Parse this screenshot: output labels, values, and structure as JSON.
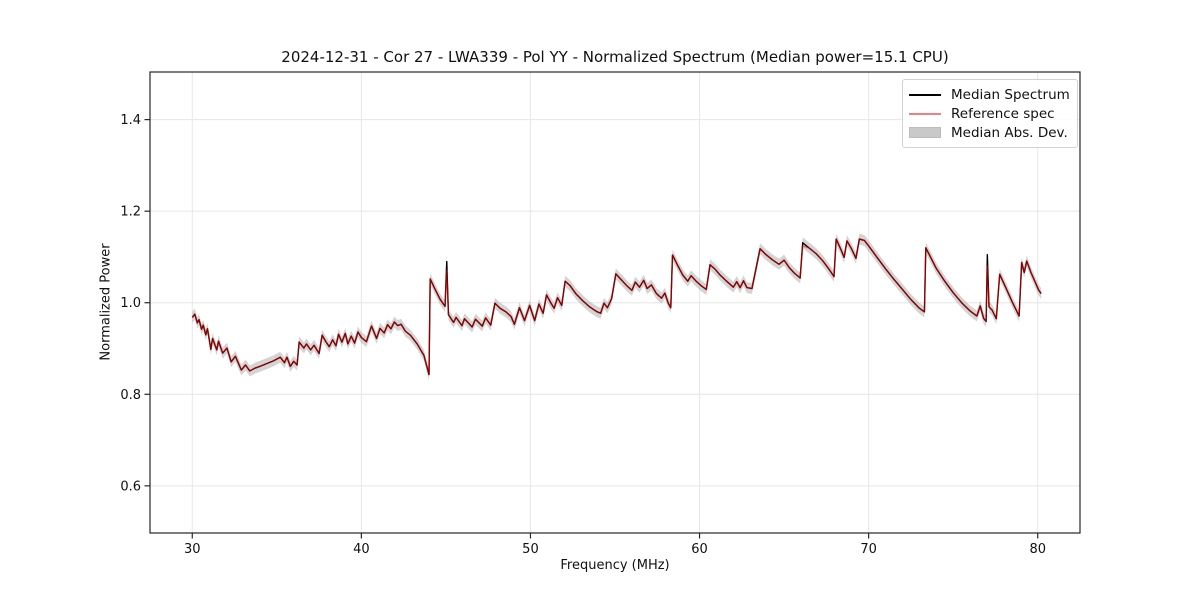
{
  "chart_data": {
    "type": "line",
    "title": "2024-12-31 - Cor 27 - LWA339 - Pol YY - Normalized Spectrum (Median power=15.1 CPU)",
    "xlabel": "Frequency (MHz)",
    "ylabel": "Normalized Power",
    "xlim": [
      27.5,
      82.5
    ],
    "ylim": [
      0.497,
      1.504
    ],
    "x_ticks": [
      30,
      40,
      50,
      60,
      70,
      80
    ],
    "y_ticks": [
      0.6,
      0.8,
      1.0,
      1.2,
      1.4
    ],
    "grid": true,
    "legend_position": "upper right",
    "colors": {
      "median_line": "#000000",
      "reference_line": "#ff0000",
      "reference_opacity": 0.55,
      "mad_band": "#aaaaaa",
      "mad_band_opacity": 0.5,
      "gridline": "#e6e6e6",
      "spine": "#262626"
    },
    "mad_halfwidth": 0.012,
    "series": [
      {
        "name": "Median Spectrum",
        "points": [
          [
            30.0,
            0.968
          ],
          [
            30.15,
            0.975
          ],
          [
            30.3,
            0.956
          ],
          [
            30.4,
            0.963
          ],
          [
            30.55,
            0.942
          ],
          [
            30.65,
            0.951
          ],
          [
            30.8,
            0.93
          ],
          [
            30.9,
            0.943
          ],
          [
            31.1,
            0.898
          ],
          [
            31.2,
            0.922
          ],
          [
            31.45,
            0.897
          ],
          [
            31.55,
            0.916
          ],
          [
            31.8,
            0.89
          ],
          [
            32.05,
            0.901
          ],
          [
            32.3,
            0.871
          ],
          [
            32.55,
            0.883
          ],
          [
            32.9,
            0.853
          ],
          [
            33.15,
            0.864
          ],
          [
            33.4,
            0.851
          ],
          [
            33.7,
            0.857
          ],
          [
            34.0,
            0.861
          ],
          [
            34.4,
            0.867
          ],
          [
            34.8,
            0.873
          ],
          [
            35.2,
            0.881
          ],
          [
            35.45,
            0.869
          ],
          [
            35.6,
            0.881
          ],
          [
            35.8,
            0.861
          ],
          [
            36.0,
            0.872
          ],
          [
            36.2,
            0.864
          ],
          [
            36.32,
            0.914
          ],
          [
            36.6,
            0.901
          ],
          [
            36.75,
            0.91
          ],
          [
            37.0,
            0.897
          ],
          [
            37.2,
            0.907
          ],
          [
            37.5,
            0.889
          ],
          [
            37.68,
            0.929
          ],
          [
            37.9,
            0.915
          ],
          [
            38.1,
            0.904
          ],
          [
            38.3,
            0.919
          ],
          [
            38.5,
            0.906
          ],
          [
            38.65,
            0.931
          ],
          [
            38.85,
            0.914
          ],
          [
            39.05,
            0.933
          ],
          [
            39.2,
            0.91
          ],
          [
            39.4,
            0.927
          ],
          [
            39.6,
            0.912
          ],
          [
            39.8,
            0.936
          ],
          [
            40.0,
            0.924
          ],
          [
            40.3,
            0.915
          ],
          [
            40.6,
            0.949
          ],
          [
            40.9,
            0.922
          ],
          [
            41.1,
            0.944
          ],
          [
            41.35,
            0.934
          ],
          [
            41.55,
            0.952
          ],
          [
            41.75,
            0.943
          ],
          [
            41.95,
            0.958
          ],
          [
            42.15,
            0.95
          ],
          [
            42.35,
            0.953
          ],
          [
            42.6,
            0.938
          ],
          [
            42.9,
            0.929
          ],
          [
            43.3,
            0.91
          ],
          [
            43.7,
            0.885
          ],
          [
            44.0,
            0.843
          ],
          [
            44.07,
            1.052
          ],
          [
            44.35,
            1.03
          ],
          [
            44.65,
            1.008
          ],
          [
            44.95,
            0.992
          ],
          [
            45.05,
            1.09
          ],
          [
            45.15,
            0.974
          ],
          [
            45.45,
            0.957
          ],
          [
            45.6,
            0.968
          ],
          [
            45.95,
            0.95
          ],
          [
            46.1,
            0.965
          ],
          [
            46.55,
            0.947
          ],
          [
            46.75,
            0.964
          ],
          [
            47.15,
            0.949
          ],
          [
            47.35,
            0.967
          ],
          [
            47.65,
            0.951
          ],
          [
            47.9,
            0.999
          ],
          [
            48.2,
            0.988
          ],
          [
            48.55,
            0.98
          ],
          [
            48.85,
            0.97
          ],
          [
            49.05,
            0.953
          ],
          [
            49.35,
            0.989
          ],
          [
            49.65,
            0.961
          ],
          [
            49.95,
            0.994
          ],
          [
            50.25,
            0.961
          ],
          [
            50.5,
            0.997
          ],
          [
            50.75,
            0.977
          ],
          [
            50.95,
            1.017
          ],
          [
            51.2,
            1.0
          ],
          [
            51.4,
            0.988
          ],
          [
            51.6,
            1.011
          ],
          [
            51.85,
            0.994
          ],
          [
            52.05,
            1.047
          ],
          [
            52.35,
            1.037
          ],
          [
            52.7,
            1.019
          ],
          [
            53.1,
            1.004
          ],
          [
            53.5,
            0.991
          ],
          [
            53.9,
            0.981
          ],
          [
            54.15,
            0.977
          ],
          [
            54.35,
            0.999
          ],
          [
            54.55,
            0.989
          ],
          [
            54.8,
            1.009
          ],
          [
            55.05,
            1.063
          ],
          [
            55.35,
            1.051
          ],
          [
            55.7,
            1.037
          ],
          [
            56.0,
            1.027
          ],
          [
            56.2,
            1.045
          ],
          [
            56.45,
            1.034
          ],
          [
            56.7,
            1.049
          ],
          [
            56.9,
            1.031
          ],
          [
            57.15,
            1.039
          ],
          [
            57.45,
            1.02
          ],
          [
            57.75,
            1.01
          ],
          [
            57.95,
            1.021
          ],
          [
            58.15,
            0.999
          ],
          [
            58.3,
            0.989
          ],
          [
            58.4,
            1.104
          ],
          [
            58.7,
            1.082
          ],
          [
            59.0,
            1.061
          ],
          [
            59.3,
            1.047
          ],
          [
            59.5,
            1.059
          ],
          [
            59.8,
            1.047
          ],
          [
            60.1,
            1.037
          ],
          [
            60.4,
            1.029
          ],
          [
            60.62,
            1.083
          ],
          [
            60.9,
            1.074
          ],
          [
            61.2,
            1.061
          ],
          [
            61.6,
            1.047
          ],
          [
            62.0,
            1.034
          ],
          [
            62.2,
            1.046
          ],
          [
            62.4,
            1.033
          ],
          [
            62.6,
            1.048
          ],
          [
            62.8,
            1.033
          ],
          [
            63.1,
            1.031
          ],
          [
            63.58,
            1.118
          ],
          [
            63.9,
            1.106
          ],
          [
            64.3,
            1.094
          ],
          [
            64.7,
            1.084
          ],
          [
            65.0,
            1.093
          ],
          [
            65.3,
            1.077
          ],
          [
            65.6,
            1.065
          ],
          [
            65.95,
            1.054
          ],
          [
            66.1,
            1.131
          ],
          [
            66.5,
            1.119
          ],
          [
            66.9,
            1.107
          ],
          [
            67.3,
            1.091
          ],
          [
            67.7,
            1.071
          ],
          [
            67.95,
            1.057
          ],
          [
            68.08,
            1.139
          ],
          [
            68.35,
            1.117
          ],
          [
            68.55,
            1.099
          ],
          [
            68.72,
            1.135
          ],
          [
            69.0,
            1.117
          ],
          [
            69.25,
            1.097
          ],
          [
            69.45,
            1.139
          ],
          [
            69.75,
            1.136
          ],
          [
            70.0,
            1.124
          ],
          [
            70.5,
            1.099
          ],
          [
            71.0,
            1.074
          ],
          [
            71.5,
            1.051
          ],
          [
            72.0,
            1.029
          ],
          [
            72.5,
            1.007
          ],
          [
            73.0,
            0.988
          ],
          [
            73.3,
            0.98
          ],
          [
            73.38,
            1.12
          ],
          [
            74.0,
            1.075
          ],
          [
            74.5,
            1.047
          ],
          [
            75.0,
            1.022
          ],
          [
            75.5,
            1.0
          ],
          [
            76.0,
            0.982
          ],
          [
            76.4,
            0.971
          ],
          [
            76.6,
            0.993
          ],
          [
            76.8,
            0.966
          ],
          [
            76.95,
            0.959
          ],
          [
            77.02,
            1.105
          ],
          [
            77.12,
            0.991
          ],
          [
            77.3,
            0.984
          ],
          [
            77.55,
            0.965
          ],
          [
            77.75,
            1.062
          ],
          [
            78.1,
            1.034
          ],
          [
            78.5,
            1.001
          ],
          [
            78.9,
            0.971
          ],
          [
            79.05,
            1.088
          ],
          [
            79.2,
            1.066
          ],
          [
            79.35,
            1.091
          ],
          [
            79.6,
            1.066
          ],
          [
            79.85,
            1.045
          ],
          [
            80.05,
            1.028
          ],
          [
            80.2,
            1.02
          ]
        ]
      },
      {
        "name": "Reference spec",
        "same_as": "Median Spectrum",
        "overrides": [
          [
            45.05,
            1.07
          ],
          [
            66.1,
            1.124
          ],
          [
            77.02,
            1.08
          ]
        ]
      },
      {
        "name": "Median Abs. Dev.",
        "band_around": "Median Spectrum",
        "halfwidth": 0.012
      }
    ]
  },
  "legend": {
    "items": [
      {
        "label": "Median Spectrum",
        "swatch": "line",
        "color": "#000000"
      },
      {
        "label": "Reference spec",
        "swatch": "line",
        "color": "#f57d7d"
      },
      {
        "label": "Median Abs. Dev.",
        "swatch": "patch",
        "color": "#c9c9c9"
      }
    ]
  }
}
